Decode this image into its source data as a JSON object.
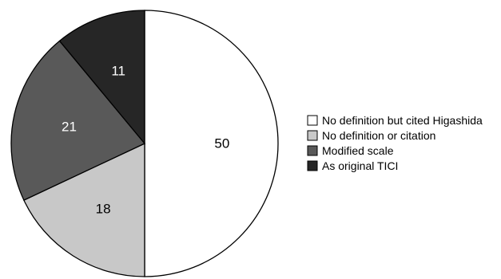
{
  "chart_data": {
    "type": "pie",
    "title": "",
    "categories": [
      "No definition but cited Higashida",
      "No definition or citation",
      "Modified scale",
      "As original TICI"
    ],
    "values": [
      50,
      18,
      21,
      11
    ],
    "labels": [
      "50",
      "18",
      "21",
      "11"
    ],
    "colors": [
      "#ffffff",
      "#c8c8c8",
      "#595959",
      "#262626"
    ],
    "label_colors": [
      "#000000",
      "#000000",
      "#ffffff",
      "#ffffff"
    ],
    "start": "top",
    "direction": "clockwise",
    "legend": {
      "position": "right",
      "entries": [
        "No definition but cited Higashida",
        "No definition or citation",
        "Modified scale",
        "As original TICI"
      ]
    }
  }
}
